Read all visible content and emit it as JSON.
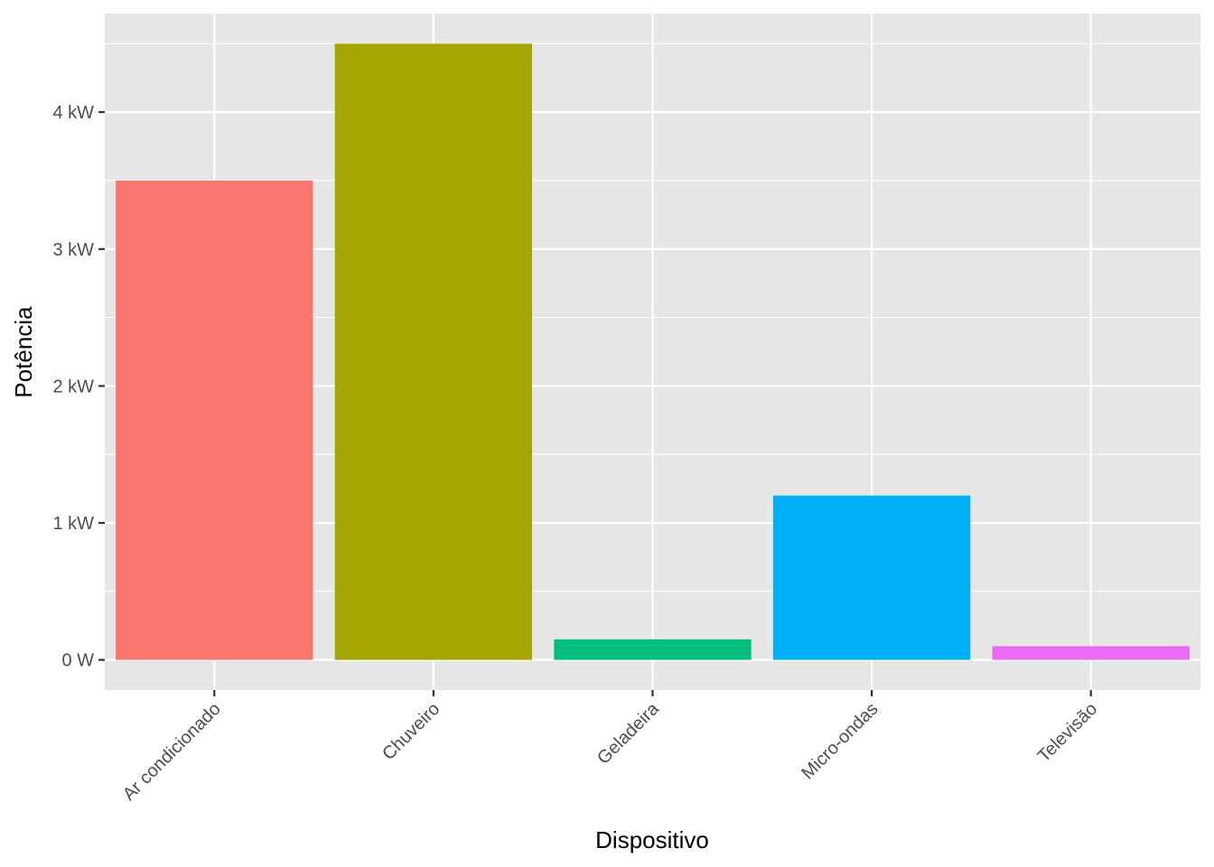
{
  "chart_data": {
    "type": "bar",
    "xlabel": "Dispositivo",
    "ylabel": "Potência",
    "categories": [
      "Ar condicionado",
      "Chuveiro",
      "Geladeira",
      "Micro-ondas",
      "Televisão"
    ],
    "values": [
      3500,
      4500,
      150,
      1200,
      100
    ],
    "value_unit": "W",
    "colors": [
      "#F8766D",
      "#A3A500",
      "#00BF7D",
      "#00B0F6",
      "#E76BF3"
    ],
    "ylim": [
      -220,
      4720
    ],
    "yticks": [
      0,
      1000,
      2000,
      3000,
      4000
    ],
    "ytick_labels": [
      "0 W",
      "1 kW",
      "2 kW",
      "3 kW",
      "4 kW"
    ],
    "grid": true,
    "legend": "none"
  }
}
